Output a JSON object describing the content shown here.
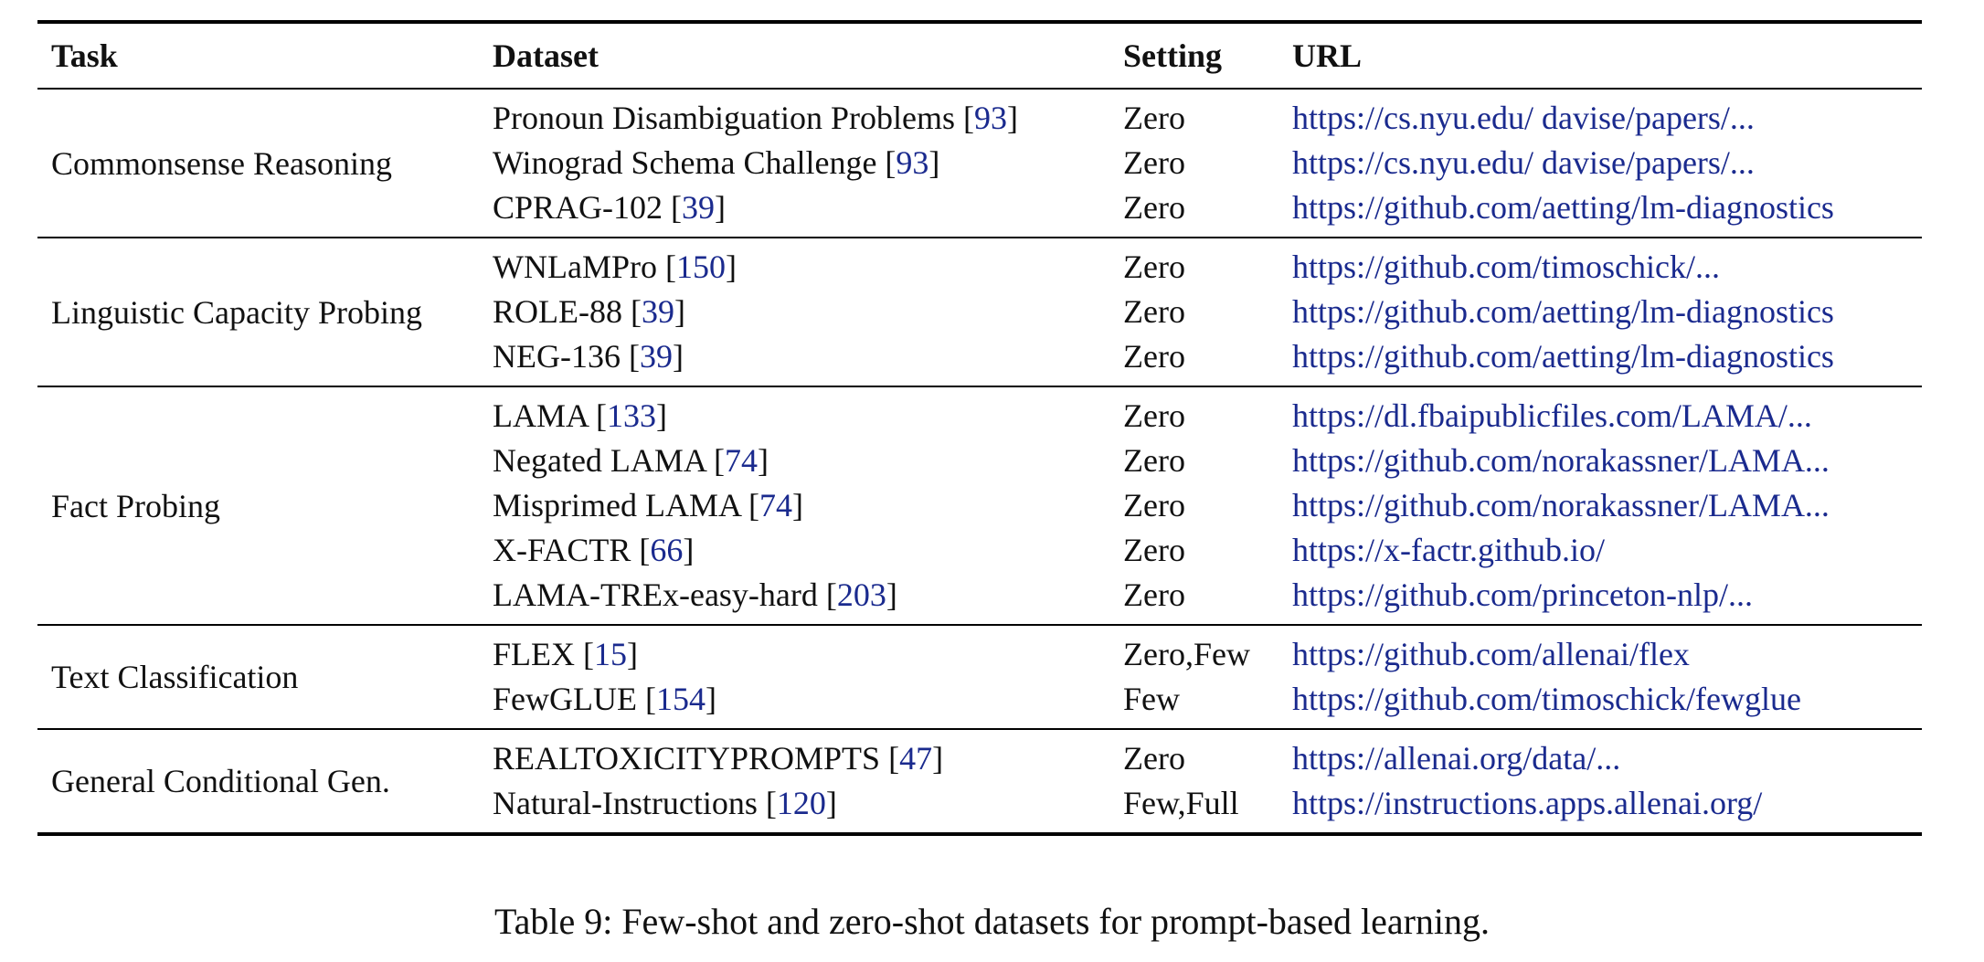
{
  "headers": {
    "task": "Task",
    "dataset": "Dataset",
    "setting": "Setting",
    "url": "URL"
  },
  "groups": [
    {
      "task": "Commonsense Reasoning",
      "rows": [
        {
          "dataset": "Pronoun Disambiguation Problems",
          "ref": "93",
          "setting": "Zero",
          "url": "https://cs.nyu.edu/ davise/papers/..."
        },
        {
          "dataset": "Winograd Schema Challenge",
          "ref": "93",
          "setting": "Zero",
          "url": "https://cs.nyu.edu/ davise/papers/..."
        },
        {
          "dataset": "CPRAG-102",
          "ref": "39",
          "setting": "Zero",
          "url": "https://github.com/aetting/lm-diagnostics"
        }
      ]
    },
    {
      "task": "Linguistic Capacity Probing",
      "rows": [
        {
          "dataset": "WNLaMPro",
          "ref": "150",
          "setting": "Zero",
          "url": "https://github.com/timoschick/..."
        },
        {
          "dataset": "ROLE-88",
          "ref": "39",
          "setting": "Zero",
          "url": "https://github.com/aetting/lm-diagnostics"
        },
        {
          "dataset": "NEG-136",
          "ref": "39",
          "setting": "Zero",
          "url": "https://github.com/aetting/lm-diagnostics"
        }
      ]
    },
    {
      "task": "Fact Probing",
      "rows": [
        {
          "dataset": "LAMA",
          "ref": "133",
          "setting": "Zero",
          "url": "https://dl.fbaipublicfiles.com/LAMA/..."
        },
        {
          "dataset": "Negated LAMA",
          "ref": "74",
          "setting": "Zero",
          "url": "https://github.com/norakassner/LAMA..."
        },
        {
          "dataset": "Misprimed LAMA",
          "ref": "74",
          "setting": "Zero",
          "url": "https://github.com/norakassner/LAMA..."
        },
        {
          "dataset": "X-FACTR",
          "ref": "66",
          "setting": "Zero",
          "url": "https://x-factr.github.io/"
        },
        {
          "dataset": "LAMA-TREx-easy-hard",
          "ref": "203",
          "setting": "Zero",
          "url": "https://github.com/princeton-nlp/..."
        }
      ]
    },
    {
      "task": "Text Classification",
      "rows": [
        {
          "dataset": "FLEX",
          "ref": "15",
          "setting": "Zero,Few",
          "url": "https://github.com/allenai/flex"
        },
        {
          "dataset": "FewGLUE",
          "ref": "154",
          "setting": "Few",
          "url": "https://github.com/timoschick/fewglue"
        }
      ]
    },
    {
      "task": "General Conditional Gen.",
      "rows": [
        {
          "dataset": "REALTOXICITYPROMPTS",
          "ref": "47",
          "setting": "Zero",
          "url": "https://allenai.org/data/..."
        },
        {
          "dataset": "Natural-Instructions",
          "ref": "120",
          "setting": "Few,Full",
          "url": "https://instructions.apps.allenai.org/"
        }
      ]
    }
  ],
  "caption": "Table 9: Few-shot and zero-shot datasets for prompt-based learning.",
  "colors": {
    "link": "#1a2a8e",
    "rule": "#000000",
    "text": "#111111"
  }
}
